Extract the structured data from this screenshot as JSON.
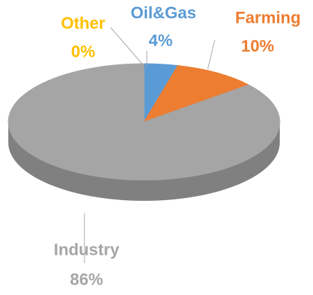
{
  "chart_data": {
    "type": "pie",
    "categories": [
      "Other",
      "Oil&Gas",
      "Farming",
      "Industry"
    ],
    "values": [
      0,
      4,
      10,
      86
    ],
    "value_labels": [
      "0%",
      "4%",
      "10%",
      "86%"
    ],
    "colors": [
      "#ffc000",
      "#5b9bd5",
      "#ed7d31",
      "#a5a5a5"
    ]
  }
}
